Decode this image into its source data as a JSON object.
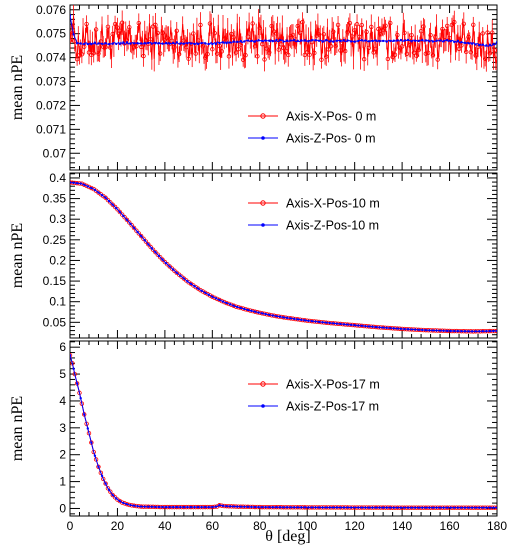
{
  "chart_data": [
    {
      "type": "line",
      "ylabel": "mean nPE",
      "xlabel": "",
      "xlim": [
        0,
        180
      ],
      "ylim": [
        0.0693,
        0.0762
      ],
      "x_ticks": [
        0,
        20,
        40,
        60,
        80,
        100,
        120,
        140,
        160,
        180
      ],
      "y_ticks": [
        0.07,
        0.071,
        0.072,
        0.073,
        0.074,
        0.075,
        0.076
      ],
      "y_tick_labels": [
        "0.07",
        "0.071",
        "0.072",
        "0.073",
        "0.074",
        "0.075",
        "0.076"
      ],
      "legend_position": "right-middle",
      "series": [
        {
          "name": "Axis-X-Pos- 0 m",
          "color": "#ff0000",
          "marker": "open-circle",
          "has_error_bars": true,
          "x": [
            0,
            2,
            4,
            6,
            8,
            10,
            15,
            20,
            30,
            40,
            50,
            60,
            70,
            80,
            90,
            100,
            110,
            120,
            130,
            140,
            150,
            160,
            170,
            175,
            178,
            180
          ],
          "y": [
            0.0755,
            0.0748,
            0.0745,
            0.0746,
            0.0747,
            0.0747,
            0.0747,
            0.0747,
            0.0747,
            0.0747,
            0.0747,
            0.0747,
            0.0747,
            0.0747,
            0.0747,
            0.0747,
            0.0747,
            0.0747,
            0.0747,
            0.0747,
            0.0747,
            0.0747,
            0.0746,
            0.0745,
            0.0744,
            0.0743
          ],
          "y_spread": 0.0008
        },
        {
          "name": "Axis-Z-Pos- 0 m",
          "color": "#0000ff",
          "marker": "filled-dot",
          "has_error_bars": false,
          "x": [
            0,
            1,
            2,
            3,
            5,
            8,
            10,
            20,
            40,
            60,
            80,
            90,
            100,
            120,
            140,
            160,
            170,
            175,
            178,
            180
          ],
          "y": [
            0.0758,
            0.0752,
            0.0748,
            0.0746,
            0.0746,
            0.0746,
            0.0746,
            0.0746,
            0.0746,
            0.0746,
            0.0747,
            0.0747,
            0.0747,
            0.0747,
            0.0747,
            0.0747,
            0.0746,
            0.0745,
            0.0745,
            0.0746
          ]
        }
      ]
    },
    {
      "type": "line",
      "ylabel": "mean nPE",
      "xlabel": "",
      "xlim": [
        0,
        180
      ],
      "ylim": [
        0.012,
        0.412
      ],
      "x_ticks": [
        0,
        20,
        40,
        60,
        80,
        100,
        120,
        140,
        160,
        180
      ],
      "y_ticks": [
        0.05,
        0.1,
        0.15,
        0.2,
        0.25,
        0.3,
        0.35,
        0.4
      ],
      "y_tick_labels": [
        "0.05",
        "0.1",
        "0.15",
        "0.2",
        "0.25",
        "0.3",
        "0.35",
        "0.4"
      ],
      "legend_position": "top-right",
      "series": [
        {
          "name": "Axis-X-Pos-10 m",
          "color": "#ff0000",
          "marker": "open-circle",
          "x": [
            0,
            5,
            10,
            15,
            20,
            25,
            30,
            35,
            40,
            45,
            50,
            55,
            60,
            65,
            70,
            75,
            80,
            85,
            90,
            95,
            100,
            110,
            120,
            130,
            140,
            150,
            160,
            170,
            180
          ],
          "y": [
            0.389,
            0.386,
            0.373,
            0.352,
            0.324,
            0.292,
            0.259,
            0.226,
            0.196,
            0.17,
            0.147,
            0.128,
            0.112,
            0.099,
            0.088,
            0.08,
            0.073,
            0.067,
            0.062,
            0.058,
            0.054,
            0.048,
            0.043,
            0.038,
            0.034,
            0.031,
            0.029,
            0.028,
            0.029
          ]
        },
        {
          "name": "Axis-Z-Pos-10 m",
          "color": "#0000ff",
          "marker": "filled-dot",
          "x": [
            0,
            5,
            10,
            15,
            20,
            25,
            30,
            35,
            40,
            45,
            50,
            55,
            60,
            65,
            70,
            75,
            80,
            85,
            90,
            95,
            100,
            110,
            120,
            130,
            140,
            150,
            160,
            170,
            180
          ],
          "y": [
            0.389,
            0.386,
            0.373,
            0.352,
            0.324,
            0.292,
            0.259,
            0.226,
            0.196,
            0.17,
            0.147,
            0.128,
            0.112,
            0.099,
            0.088,
            0.08,
            0.073,
            0.067,
            0.062,
            0.058,
            0.054,
            0.048,
            0.043,
            0.038,
            0.034,
            0.031,
            0.029,
            0.028,
            0.029
          ]
        }
      ]
    },
    {
      "type": "line",
      "ylabel": "mean nPE",
      "xlabel": "θ [deg]",
      "xlim": [
        0,
        180
      ],
      "ylim": [
        -0.28,
        6.23
      ],
      "x_ticks": [
        0,
        20,
        40,
        60,
        80,
        100,
        120,
        140,
        160,
        180
      ],
      "x_tick_labels": [
        "0",
        "20",
        "40",
        "60",
        "80",
        "100",
        "120",
        "140",
        "160",
        "180"
      ],
      "y_ticks": [
        0,
        1,
        2,
        3,
        4,
        5,
        6
      ],
      "y_tick_labels": [
        "0",
        "1",
        "2",
        "3",
        "4",
        "5",
        "6"
      ],
      "legend_position": "top-right",
      "series": [
        {
          "name": "Axis-X-Pos-17 m",
          "color": "#ff0000",
          "marker": "open-circle",
          "x": [
            0,
            1,
            2,
            3,
            4,
            5,
            6,
            8,
            10,
            12,
            14,
            16,
            18,
            20,
            22,
            25,
            28,
            30,
            35,
            40,
            50,
            60,
            62,
            63,
            65,
            70,
            80,
            100,
            120,
            140,
            160,
            170,
            180
          ],
          "y": [
            5.7,
            5.4,
            5.0,
            4.65,
            4.3,
            3.9,
            3.5,
            2.8,
            2.1,
            1.55,
            1.1,
            0.75,
            0.5,
            0.33,
            0.22,
            0.13,
            0.09,
            0.07,
            0.06,
            0.05,
            0.05,
            0.05,
            0.07,
            0.12,
            0.09,
            0.07,
            0.05,
            0.04,
            0.035,
            0.03,
            0.03,
            0.03,
            0.03
          ]
        },
        {
          "name": "Axis-Z-Pos-17 m",
          "color": "#0000ff",
          "marker": "filled-dot",
          "x": [
            0,
            1,
            2,
            3,
            4,
            5,
            6,
            8,
            10,
            12,
            14,
            16,
            18,
            20,
            22,
            25,
            28,
            30,
            35,
            40,
            50,
            60,
            62,
            63,
            65,
            70,
            80,
            100,
            120,
            140,
            160,
            170,
            180
          ],
          "y": [
            5.7,
            5.4,
            5.0,
            4.65,
            4.3,
            3.9,
            3.5,
            2.8,
            2.1,
            1.55,
            1.1,
            0.75,
            0.5,
            0.33,
            0.22,
            0.13,
            0.09,
            0.07,
            0.06,
            0.05,
            0.05,
            0.05,
            0.07,
            0.12,
            0.09,
            0.07,
            0.05,
            0.04,
            0.035,
            0.03,
            0.03,
            0.03,
            0.03
          ]
        }
      ]
    }
  ]
}
